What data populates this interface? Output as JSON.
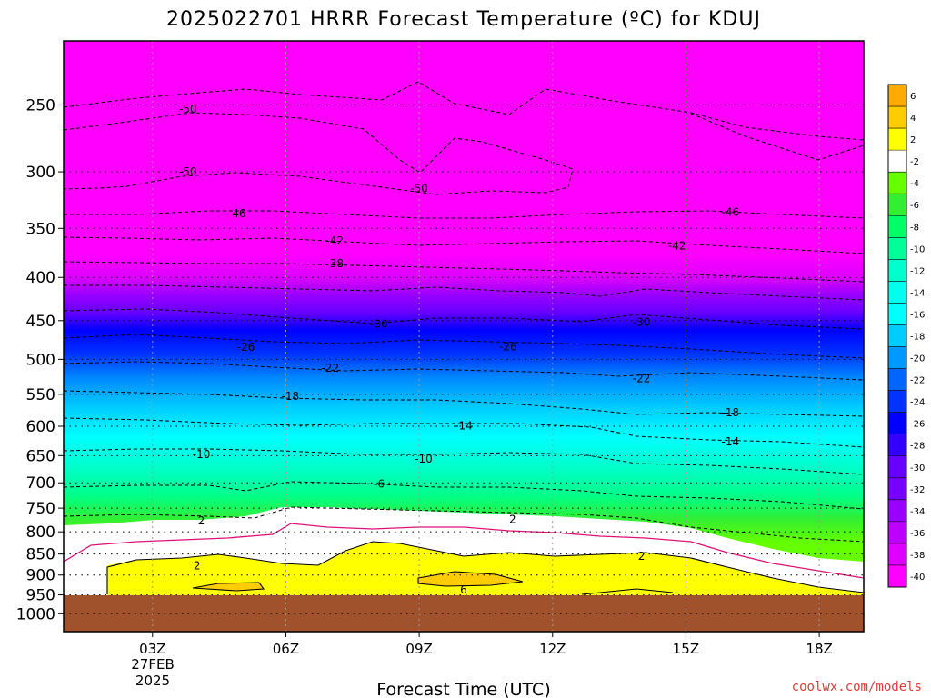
{
  "chart_data": {
    "type": "heatmap",
    "title": "2025022701 HRRR Forecast Temperature (ºC) for KDUJ",
    "xlabel": "Forecast Time (UTC)",
    "ylabel": "",
    "x_ticks": [
      {
        "label": "03Z",
        "hour": 3
      },
      {
        "label": "06Z",
        "hour": 6
      },
      {
        "label": "09Z",
        "hour": 9
      },
      {
        "label": "12Z",
        "hour": 12
      },
      {
        "label": "15Z",
        "hour": 15
      },
      {
        "label": "18Z",
        "hour": 18
      }
    ],
    "x_date_lines": [
      "27FEB",
      "2025"
    ],
    "xlim": [
      1,
      19
    ],
    "y_axis": "pressure (log, inverted)",
    "ylim": [
      1000,
      200
    ],
    "y_ticks": [
      250,
      300,
      350,
      400,
      450,
      500,
      550,
      600,
      650,
      700,
      750,
      800,
      850,
      900,
      950,
      1000
    ],
    "ground_level": 950,
    "colorbar": {
      "ticks": [
        6,
        4,
        2,
        -2,
        -4,
        -6,
        -8,
        -10,
        -12,
        -14,
        -16,
        -18,
        -20,
        -22,
        -24,
        -26,
        -28,
        -30,
        -32,
        -34,
        -36,
        -38,
        -40
      ],
      "colors": [
        "#ffaa00",
        "#ffcc00",
        "#ffff00",
        "#ffffff",
        "#66ff00",
        "#33ee33",
        "#00ff66",
        "#00ff99",
        "#00ffcc",
        "#00ffee",
        "#00ffff",
        "#00ccff",
        "#0099ff",
        "#0066ff",
        "#0033ff",
        "#0000ff",
        "#3300ff",
        "#6600ff",
        "#7700ff",
        "#9900ff",
        "#bb00ff",
        "#dd00ff",
        "#ff00ff"
      ]
    },
    "temperature_by_level": [
      {
        "p": 250,
        "t": -52
      },
      {
        "p": 300,
        "t": -50
      },
      {
        "p": 350,
        "t": -44
      },
      {
        "p": 400,
        "t": -36
      },
      {
        "p": 450,
        "t": -30
      },
      {
        "p": 500,
        "t": -24
      },
      {
        "p": 550,
        "t": -18
      },
      {
        "p": 600,
        "t": -14
      },
      {
        "p": 650,
        "t": -10
      },
      {
        "p": 700,
        "t": -6
      },
      {
        "p": 750,
        "t": -2
      },
      {
        "p": 800,
        "t": 1
      },
      {
        "p": 850,
        "t": 2
      },
      {
        "p": 900,
        "t": 4
      },
      {
        "p": 950,
        "t": 5
      }
    ],
    "contour_labels": [
      {
        "text": "-50",
        "hour": 3.8,
        "p": 253
      },
      {
        "text": "-50",
        "hour": 3.8,
        "p": 300
      },
      {
        "text": "-50",
        "hour": 9.0,
        "p": 314
      },
      {
        "text": "-46",
        "hour": 4.9,
        "p": 336
      },
      {
        "text": "-46",
        "hour": 16.0,
        "p": 335
      },
      {
        "text": "-42",
        "hour": 7.1,
        "p": 362
      },
      {
        "text": "-42",
        "hour": 14.8,
        "p": 367
      },
      {
        "text": "-38",
        "hour": 7.1,
        "p": 385
      },
      {
        "text": "-30",
        "hour": 8.1,
        "p": 454
      },
      {
        "text": "-30",
        "hour": 14.0,
        "p": 452
      },
      {
        "text": "-26",
        "hour": 5.1,
        "p": 484
      },
      {
        "text": "-26",
        "hour": 11.0,
        "p": 483
      },
      {
        "text": "-22",
        "hour": 7.0,
        "p": 512
      },
      {
        "text": "-22",
        "hour": 14.0,
        "p": 527
      },
      {
        "text": "-18",
        "hour": 6.1,
        "p": 553
      },
      {
        "text": "-18",
        "hour": 16.0,
        "p": 578
      },
      {
        "text": "-14",
        "hour": 10.0,
        "p": 599
      },
      {
        "text": "-14",
        "hour": 16.0,
        "p": 626
      },
      {
        "text": "-10",
        "hour": 4.1,
        "p": 648
      },
      {
        "text": "-10",
        "hour": 9.1,
        "p": 656
      },
      {
        "text": "-6",
        "hour": 8.1,
        "p": 702
      },
      {
        "text": "2",
        "hour": 4.1,
        "p": 776
      },
      {
        "text": "2",
        "hour": 11.1,
        "p": 773
      },
      {
        "text": "2",
        "hour": 4.0,
        "p": 878
      },
      {
        "text": "2",
        "hour": 14.0,
        "p": 855
      },
      {
        "text": "6",
        "hour": 10.0,
        "p": 937
      }
    ],
    "credit": "coolwx.com/models"
  }
}
